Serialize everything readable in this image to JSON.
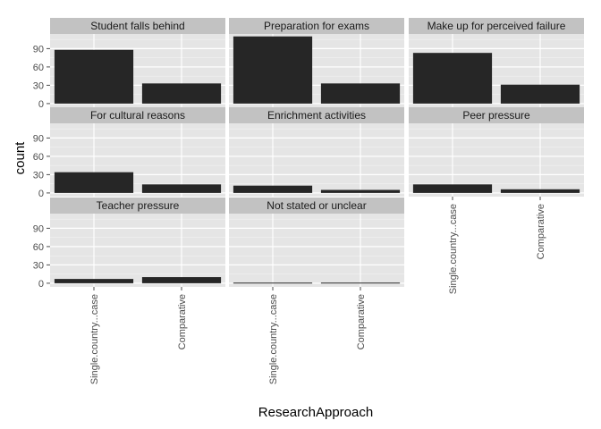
{
  "chart_data": {
    "type": "bar",
    "facets": [
      {
        "label": "Student falls behind",
        "values": [
          88,
          33
        ]
      },
      {
        "label": "Preparation for exams",
        "values": [
          110,
          33
        ]
      },
      {
        "label": "Make up for perceived failure",
        "values": [
          83,
          31
        ]
      },
      {
        "label": "For cultural reasons",
        "values": [
          34,
          14
        ]
      },
      {
        "label": "Enrichment activities",
        "values": [
          12,
          5
        ]
      },
      {
        "label": "Peer pressure",
        "values": [
          14,
          6
        ]
      },
      {
        "label": "Teacher pressure",
        "values": [
          7,
          10
        ]
      },
      {
        "label": "Not stated or unclear",
        "values": [
          1,
          1
        ]
      }
    ],
    "categories": [
      "Single.country...case",
      "Comparative"
    ],
    "xlabel": "ResearchApproach",
    "ylabel": "count",
    "ylim": [
      -6,
      114
    ],
    "yticks": [
      0,
      30,
      60,
      90
    ],
    "ncol": 3,
    "grid": true,
    "colors": {
      "bar": "#262626",
      "panel": "#e5e5e5",
      "strip": "#c2c2c2",
      "grid_major": "#ffffff",
      "grid_minor": "#f2f2f2"
    }
  }
}
